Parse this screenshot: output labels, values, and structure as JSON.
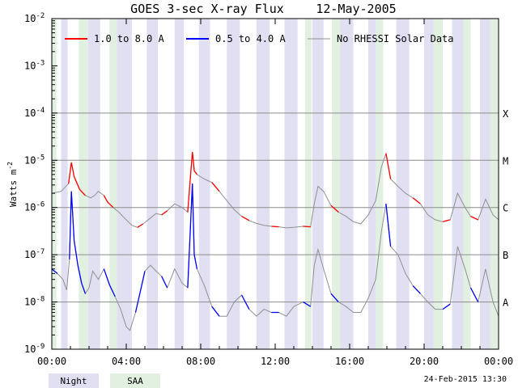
{
  "chart_data": {
    "type": "line",
    "title": "GOES 3-sec X-ray Flux",
    "date": "12-May-2005",
    "ylabel": "Watts m",
    "ylabel_sup": "-2",
    "y_scale": "log",
    "ylim": [
      1e-09,
      0.01
    ],
    "y_ticks": [
      {
        "base": "10",
        "exp": "-2",
        "value": 0.01
      },
      {
        "base": "10",
        "exp": "-3",
        "value": 0.001
      },
      {
        "base": "10",
        "exp": "-4",
        "value": 0.0001
      },
      {
        "base": "10",
        "exp": "-5",
        "value": 1e-05
      },
      {
        "base": "10",
        "exp": "-6",
        "value": 1e-06
      },
      {
        "base": "10",
        "exp": "-7",
        "value": 1e-07
      },
      {
        "base": "10",
        "exp": "-8",
        "value": 1e-08
      },
      {
        "base": "10",
        "exp": "-9",
        "value": 1e-09
      }
    ],
    "xlim": [
      0,
      24
    ],
    "x_ticks": [
      {
        "label": "00:00",
        "value": 0
      },
      {
        "label": "04:00",
        "value": 4
      },
      {
        "label": "08:00",
        "value": 8
      },
      {
        "label": "12:00",
        "value": 12
      },
      {
        "label": "16:00",
        "value": 16
      },
      {
        "label": "20:00",
        "value": 20
      },
      {
        "label": "00:00",
        "value": 24
      }
    ],
    "flare_classes": [
      {
        "label": "X",
        "value": 0.0001
      },
      {
        "label": "M",
        "value": 1e-05
      },
      {
        "label": "C",
        "value": 1e-06
      },
      {
        "label": "B",
        "value": 1e-07
      },
      {
        "label": "A",
        "value": 1e-08
      }
    ],
    "grid": true,
    "legend_placement": "top",
    "series": [
      {
        "name": "1.0 to 8.0 A",
        "color": "#ff0000",
        "x": [
          0,
          0.5,
          0.9,
          1.05,
          1.2,
          1.5,
          1.8,
          2.1,
          2.3,
          2.5,
          2.8,
          3.0,
          3.3,
          3.6,
          3.9,
          4.3,
          4.6,
          4.9,
          5.3,
          5.6,
          5.9,
          6.2,
          6.6,
          7.0,
          7.3,
          7.55,
          7.65,
          7.8,
          8.2,
          8.6,
          9.0,
          9.4,
          9.8,
          10.2,
          10.6,
          11.0,
          11.4,
          11.8,
          12.2,
          12.6,
          13.0,
          13.5,
          13.9,
          14.1,
          14.3,
          14.6,
          15.0,
          15.4,
          15.8,
          16.2,
          16.6,
          17.0,
          17.4,
          17.7,
          17.95,
          18.2,
          18.6,
          19.0,
          19.4,
          19.8,
          20.2,
          20.6,
          21.0,
          21.4,
          21.8,
          22.2,
          22.5,
          22.9,
          23.3,
          23.7,
          24
        ],
        "y": [
          2e-06,
          2.2e-06,
          3.2e-06,
          9e-06,
          4.5e-06,
          2.4e-06,
          1.8e-06,
          1.6e-06,
          1.8e-06,
          2.2e-06,
          1.8e-06,
          1.3e-06,
          1e-06,
          8e-07,
          6e-07,
          4.2e-07,
          3.8e-07,
          4.5e-07,
          6e-07,
          7.5e-07,
          7e-07,
          8.5e-07,
          1.2e-06,
          1e-06,
          8e-07,
          1.5e-05,
          6e-06,
          5e-06,
          4e-06,
          3.4e-06,
          2.2e-06,
          1.4e-06,
          9e-07,
          6.5e-07,
          5.3e-07,
          4.6e-07,
          4.2e-07,
          4e-07,
          3.9e-07,
          3.7e-07,
          3.8e-07,
          4e-07,
          3.9e-07,
          1.2e-06,
          2.8e-06,
          2.2e-06,
          1.1e-06,
          8e-07,
          6.5e-07,
          5e-07,
          4.5e-07,
          7e-07,
          1.4e-06,
          7e-06,
          1.4e-05,
          4e-06,
          2.8e-06,
          2e-06,
          1.6e-06,
          1.2e-06,
          7e-07,
          5.5e-07,
          5e-07,
          5.5e-07,
          2e-06,
          1e-06,
          6.5e-07,
          5.5e-07,
          1.5e-06,
          7e-07,
          5.5e-07
        ]
      },
      {
        "name": "0.5 to 4.0 A",
        "color": "#0000ff",
        "x": [
          0,
          0.3,
          0.6,
          0.8,
          0.95,
          1.05,
          1.2,
          1.4,
          1.6,
          1.8,
          2.0,
          2.2,
          2.5,
          2.8,
          3.1,
          3.4,
          3.7,
          4.0,
          4.2,
          4.5,
          4.8,
          5.0,
          5.3,
          5.6,
          5.9,
          6.2,
          6.6,
          7.0,
          7.3,
          7.55,
          7.65,
          7.8,
          8.2,
          8.6,
          9.0,
          9.4,
          9.8,
          10.2,
          10.6,
          11.0,
          11.4,
          11.8,
          12.2,
          12.6,
          13.0,
          13.5,
          13.9,
          14.1,
          14.3,
          14.6,
          15.0,
          15.4,
          15.8,
          16.2,
          16.6,
          17.0,
          17.4,
          17.7,
          17.95,
          18.2,
          18.6,
          19.0,
          19.4,
          19.8,
          20.2,
          20.6,
          21.0,
          21.4,
          21.8,
          22.2,
          22.5,
          22.9,
          23.3,
          23.7,
          24
        ],
        "y": [
          5e-08,
          4e-08,
          3e-08,
          1.8e-08,
          8e-08,
          2.2e-06,
          2e-07,
          6e-08,
          2.5e-08,
          1.5e-08,
          2e-08,
          4.5e-08,
          3e-08,
          5e-08,
          2.3e-08,
          1.3e-08,
          7e-09,
          3e-09,
          2.5e-09,
          6e-09,
          2e-08,
          4.5e-08,
          6e-08,
          4.5e-08,
          3.5e-08,
          2e-08,
          5e-08,
          2.5e-08,
          2e-08,
          3.2e-06,
          1e-07,
          5e-08,
          2.2e-08,
          8e-09,
          5e-09,
          5e-09,
          1e-08,
          1.4e-08,
          7e-09,
          5e-09,
          7e-09,
          6e-09,
          6e-09,
          5e-09,
          8e-09,
          1e-08,
          8e-09,
          6e-08,
          1.3e-07,
          5e-08,
          1.5e-08,
          1e-08,
          8e-09,
          6e-09,
          6e-09,
          1.2e-08,
          3e-08,
          3e-07,
          1.2e-06,
          1.5e-07,
          1e-07,
          4e-08,
          2.2e-08,
          1.5e-08,
          1e-08,
          7e-09,
          7e-09,
          9e-09,
          1.5e-07,
          5e-08,
          2e-08,
          1e-08,
          5e-08,
          1e-08,
          5e-09
        ]
      },
      {
        "name": "No RHESSI Solar Data",
        "color": "#909090"
      }
    ],
    "night_intervals": [
      [
        0.5,
        0.85
      ],
      [
        1.95,
        2.6
      ],
      [
        3.5,
        4.3
      ],
      [
        5.1,
        5.7
      ],
      [
        6.6,
        7.1
      ],
      [
        7.9,
        8.5
      ],
      [
        9.4,
        10.1
      ],
      [
        11.0,
        11.7
      ],
      [
        12.5,
        13.2
      ],
      [
        14.0,
        14.6
      ],
      [
        15.5,
        16.2
      ],
      [
        17.0,
        17.7
      ],
      [
        18.5,
        19.2
      ],
      [
        20.0,
        20.7
      ],
      [
        21.5,
        22.2
      ],
      [
        23.0,
        23.7
      ]
    ],
    "saa_intervals": [
      [
        0.0,
        0.25
      ],
      [
        1.45,
        1.95
      ],
      [
        3.1,
        3.5
      ],
      [
        13.6,
        13.95
      ],
      [
        15.05,
        15.5
      ],
      [
        17.4,
        17.8
      ],
      [
        20.5,
        21.0
      ],
      [
        22.1,
        22.5
      ],
      [
        23.55,
        24.0
      ]
    ],
    "key": {
      "night_label": "Night",
      "saa_label": "SAA",
      "night_color": "#e0e0f2",
      "saa_color": "#e2f0e2"
    },
    "timestamp": "24-Feb-2015 13:30"
  }
}
